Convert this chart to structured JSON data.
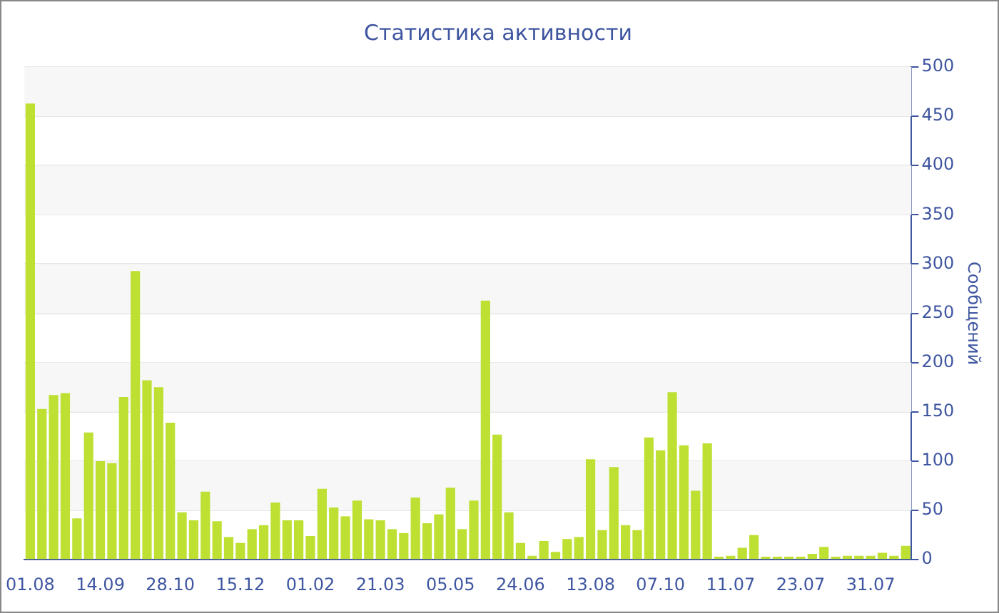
{
  "chart_data": {
    "type": "bar",
    "title": "Статистика активности",
    "ylabel": "Сообщений",
    "categories": [
      "01.08",
      null,
      null,
      null,
      null,
      null,
      "14.09",
      null,
      null,
      null,
      null,
      null,
      "28.10",
      null,
      null,
      null,
      null,
      null,
      "15.12",
      null,
      null,
      null,
      null,
      null,
      "01.02",
      null,
      null,
      null,
      null,
      null,
      "21.03",
      null,
      null,
      null,
      null,
      null,
      "05.05",
      null,
      null,
      null,
      null,
      null,
      "24.06",
      null,
      null,
      null,
      null,
      null,
      "13.08",
      null,
      null,
      null,
      null,
      null,
      "07.10",
      null,
      null,
      null,
      null,
      null,
      "11.07",
      null,
      null,
      null,
      null,
      null,
      "23.07",
      null,
      null,
      null,
      null,
      null,
      "31.07",
      null,
      null,
      null
    ],
    "values": [
      463,
      153,
      167,
      169,
      42,
      129,
      100,
      98,
      165,
      293,
      182,
      175,
      139,
      48,
      40,
      69,
      39,
      23,
      17,
      31,
      35,
      58,
      40,
      40,
      24,
      72,
      53,
      44,
      60,
      41,
      40,
      31,
      27,
      63,
      37,
      46,
      73,
      31,
      60,
      263,
      127,
      48,
      17,
      4,
      19,
      8,
      21,
      23,
      102,
      30,
      94,
      35,
      30,
      124,
      111,
      170,
      116,
      70,
      118,
      3,
      4,
      12,
      25,
      3,
      3,
      3,
      3,
      6,
      13,
      3,
      4,
      4,
      4,
      7,
      4,
      14
    ],
    "color": "#bde033",
    "ylim": [
      0,
      500
    ],
    "yticks": [
      0,
      50,
      100,
      150,
      200,
      250,
      300,
      350,
      400,
      450,
      500
    ],
    "grid": "y",
    "legend": false
  }
}
